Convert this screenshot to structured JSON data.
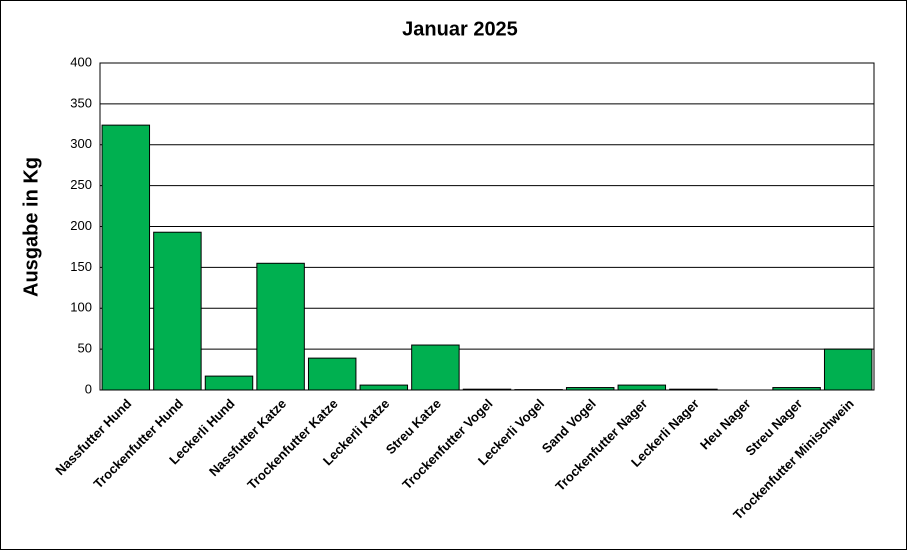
{
  "chart_data": {
    "type": "bar",
    "title": "Januar 2025",
    "y_label": "Ausgabe in Kg",
    "categories": [
      "Nassfutter Hund",
      "Trockenfutter Hund",
      "Leckerli Hund",
      "Nassfutter Katze",
      "Trockenfutter Katze",
      "Leckerli Katze",
      "Streu Katze",
      "Trockenfutter Vogel",
      "Leckerli Vogel",
      "Sand Vogel",
      "Trockenfutter Nager",
      "Leckerli Nager",
      "Heu Nager",
      "Streu Nager",
      "Trockenfutter Minischwein"
    ],
    "values": [
      324,
      193,
      17,
      155,
      39,
      6,
      55,
      1,
      0.5,
      3,
      6,
      1,
      0,
      3,
      50
    ],
    "color": "#00b050",
    "ylim": [
      0,
      400
    ],
    "yticks": [
      0,
      50,
      100,
      150,
      200,
      250,
      300,
      350,
      400
    ],
    "grid": true
  }
}
